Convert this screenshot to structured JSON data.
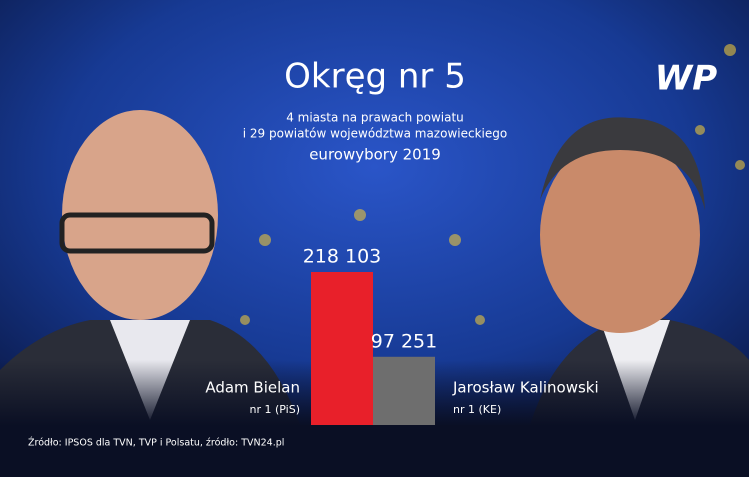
{
  "chart_data": {
    "type": "bar",
    "title": "Okręg nr 5",
    "subtitle": [
      "4 miasta na prawach powiatu",
      "i 29 powiatów województwa mazowieckiego",
      "eurowybory 2019"
    ],
    "categories": [
      "Adam Bielan",
      "Jarosław Kalinowski"
    ],
    "category_notes": [
      "nr 1 (PiS)",
      "nr 1 (KE)"
    ],
    "values": [
      218103,
      97251
    ],
    "value_labels": [
      "218 103",
      "97 251"
    ],
    "colors": [
      "#e8202a",
      "#6e6e6e"
    ],
    "source": "Źródło: IPSOS dla TVN, TVP i Polsatu, źródło: TVN24.pl",
    "logo": "WP"
  }
}
